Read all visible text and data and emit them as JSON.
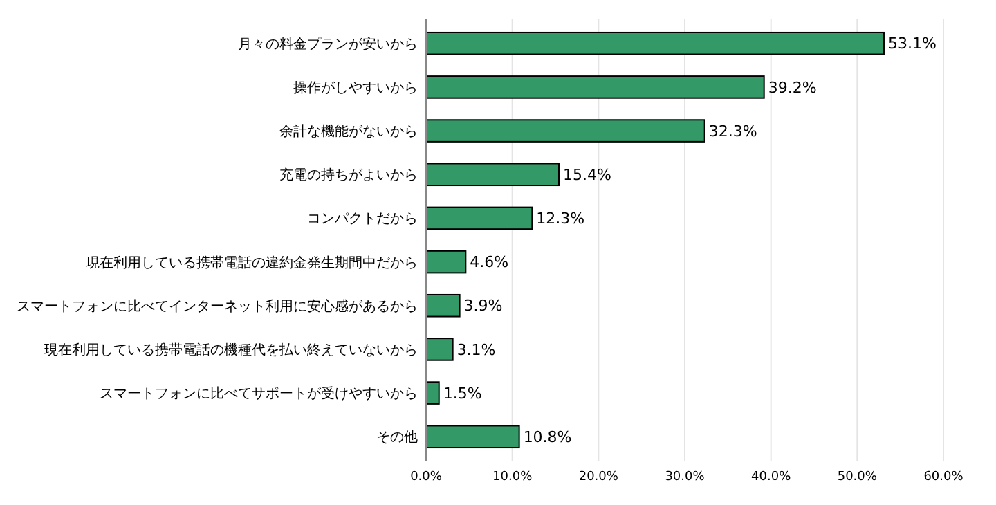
{
  "chart_data": {
    "type": "bar",
    "orientation": "horizontal",
    "categories": [
      "月々の料金プランが安いから",
      "操作がしやすいから",
      "余計な機能がないから",
      "充電の持ちがよいから",
      "コンパクトだから",
      "現在利用している携帯電話の違約金発生期間中だから",
      "スマートフォンに比べてインターネット利用に安心感があるから",
      "現在利用している携帯電話の機種代を払い終えていないから",
      "スマートフォンに比べてサポートが受けやすいから",
      "その他"
    ],
    "values": [
      53.1,
      39.2,
      32.3,
      15.4,
      12.3,
      4.6,
      3.9,
      3.1,
      1.5,
      10.8
    ],
    "value_labels": [
      "53.1%",
      "39.2%",
      "32.3%",
      "15.4%",
      "12.3%",
      "4.6%",
      "3.9%",
      "3.1%",
      "1.5%",
      "10.8%"
    ],
    "color": "#339966",
    "xlim": [
      0,
      60
    ],
    "xticks": [
      {
        "value": 0,
        "label": "0.0%"
      },
      {
        "value": 10,
        "label": "10.0%"
      },
      {
        "value": 20,
        "label": "20.0%"
      },
      {
        "value": 30,
        "label": "30.0%"
      },
      {
        "value": 40,
        "label": "40.0%"
      },
      {
        "value": 50,
        "label": "50.0%"
      },
      {
        "value": 60,
        "label": "60.0%"
      }
    ],
    "grid": "x"
  }
}
